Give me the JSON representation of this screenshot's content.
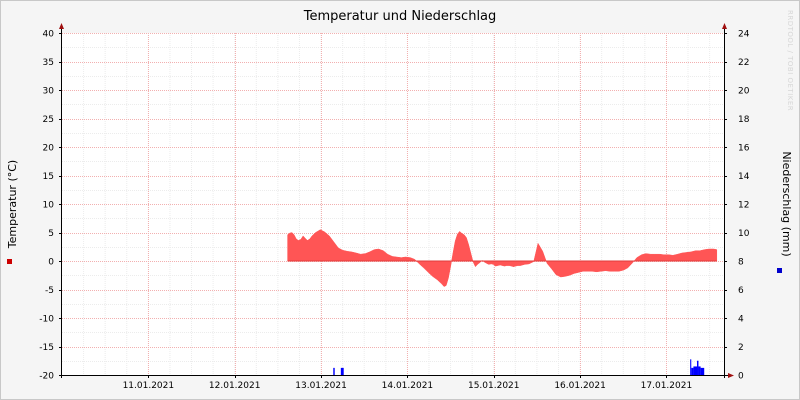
{
  "chart_data": {
    "type": "area",
    "title": "Temperatur und Niederschlag",
    "watermark": "RRDTOOL / TOBI OETIKER",
    "x_tick_labels": [
      "11.01.2021",
      "12.01.2021",
      "13.01.2021",
      "14.01.2021",
      "15.01.2021",
      "16.01.2021",
      "17.01.2021"
    ],
    "x_tick_hours": [
      24,
      48,
      72,
      96,
      120,
      144,
      168
    ],
    "x_range_hours": [
      0,
      184
    ],
    "grid": true,
    "left_axis": {
      "label": "Temperatur (°C)",
      "ylim": [
        -20,
        40
      ],
      "ticks": [
        -20,
        -15,
        -10,
        -5,
        0,
        5,
        10,
        15,
        20,
        25,
        30,
        35,
        40
      ]
    },
    "right_axis": {
      "label": "Niederschlag (mm)",
      "ylim": [
        0,
        24
      ],
      "ticks": [
        0,
        2,
        4,
        6,
        8,
        10,
        12,
        14,
        16,
        18,
        20,
        22,
        24
      ]
    },
    "series": [
      {
        "axis": "left",
        "color": "#ff5555",
        "legend_color": "#cc0000",
        "x_hours": [
          62.7,
          63.3,
          63.9,
          64.5,
          65.1,
          65.7,
          66.4,
          67.0,
          67.6,
          68.2,
          68.9,
          69.5,
          70.5,
          71.8,
          73.0,
          74.3,
          75.5,
          76.8,
          78.0,
          79.3,
          80.5,
          81.8,
          83.0,
          84.3,
          85.5,
          86.8,
          88.0,
          89.3,
          90.5,
          91.8,
          93.0,
          94.3,
          95.5,
          96.8,
          98.0,
          99.3,
          100.5,
          101.8,
          103.0,
          104.3,
          105.5,
          106.2,
          106.8,
          107.4,
          108.0,
          108.7,
          109.3,
          109.9,
          110.5,
          111.2,
          111.8,
          112.4,
          113.0,
          113.7,
          114.3,
          114.9,
          115.5,
          116.1,
          116.8,
          117.4,
          118.0,
          118.6,
          119.3,
          119.9,
          120.5,
          121.1,
          121.8,
          122.4,
          123.0,
          123.6,
          124.3,
          124.9,
          125.5,
          126.1,
          126.7,
          127.4,
          128.0,
          128.6,
          129.8,
          131.1,
          132.3,
          133.6,
          134.8,
          136.1,
          137.3,
          138.6,
          139.8,
          141.1,
          142.3,
          143.6,
          144.8,
          146.1,
          147.3,
          148.6,
          149.8,
          151.1,
          152.3,
          153.6,
          154.8,
          156.1,
          157.3,
          158.6,
          159.8,
          161.1,
          162.3,
          163.6,
          164.8,
          166.1,
          167.3,
          168.6,
          169.8,
          171.1,
          172.3,
          173.6,
          174.8,
          176.1,
          177.3,
          178.6,
          179.8,
          181.1,
          182.0
        ],
        "values": [
          4.6,
          4.9,
          5.0,
          4.6,
          3.9,
          3.6,
          3.8,
          4.4,
          4.0,
          3.6,
          3.9,
          4.4,
          5.0,
          5.5,
          5.1,
          4.4,
          3.4,
          2.3,
          1.9,
          1.7,
          1.6,
          1.4,
          1.2,
          1.3,
          1.6,
          2.0,
          2.1,
          1.8,
          1.2,
          0.8,
          0.7,
          0.6,
          0.7,
          0.6,
          0.3,
          -0.5,
          -1.2,
          -2.0,
          -2.7,
          -3.3,
          -4.0,
          -4.5,
          -4.3,
          -3.0,
          -1.0,
          1.5,
          3.5,
          4.7,
          5.2,
          4.8,
          4.6,
          4.1,
          2.9,
          1.2,
          -0.2,
          -1.0,
          -0.6,
          -0.3,
          0.1,
          -0.2,
          -0.4,
          -0.6,
          -0.5,
          -0.6,
          -0.9,
          -0.8,
          -0.7,
          -0.8,
          -0.9,
          -0.8,
          -0.8,
          -0.9,
          -1.0,
          -0.9,
          -0.8,
          -0.8,
          -0.7,
          -0.6,
          -0.5,
          -0.1,
          3.1,
          1.7,
          -0.4,
          -1.4,
          -2.4,
          -2.8,
          -2.7,
          -2.5,
          -2.2,
          -2.0,
          -1.8,
          -1.8,
          -1.8,
          -1.9,
          -1.8,
          -1.7,
          -1.8,
          -1.8,
          -1.8,
          -1.6,
          -1.2,
          -0.3,
          0.6,
          1.1,
          1.3,
          1.2,
          1.2,
          1.2,
          1.1,
          1.1,
          1.0,
          1.2,
          1.4,
          1.5,
          1.6,
          1.8,
          1.8,
          2.0,
          2.1,
          2.1,
          2.0
        ]
      },
      {
        "axis": "right",
        "color": "#0000ff",
        "legend_color": "#0000cc",
        "bars": [
          {
            "start_hour": 75.4,
            "end_hour": 75.8,
            "value": 0.5
          },
          {
            "start_hour": 77.5,
            "end_hour": 78.3,
            "value": 0.5
          },
          {
            "start_hour": 174.6,
            "end_hour": 174.9,
            "value": 1.1
          },
          {
            "start_hour": 174.9,
            "end_hour": 175.5,
            "value": 0.5
          },
          {
            "start_hour": 175.5,
            "end_hour": 176.5,
            "value": 0.6
          },
          {
            "start_hour": 176.5,
            "end_hour": 176.9,
            "value": 1.0
          },
          {
            "start_hour": 176.9,
            "end_hour": 177.5,
            "value": 0.6
          },
          {
            "start_hour": 177.5,
            "end_hour": 178.5,
            "value": 0.5
          }
        ]
      }
    ]
  }
}
